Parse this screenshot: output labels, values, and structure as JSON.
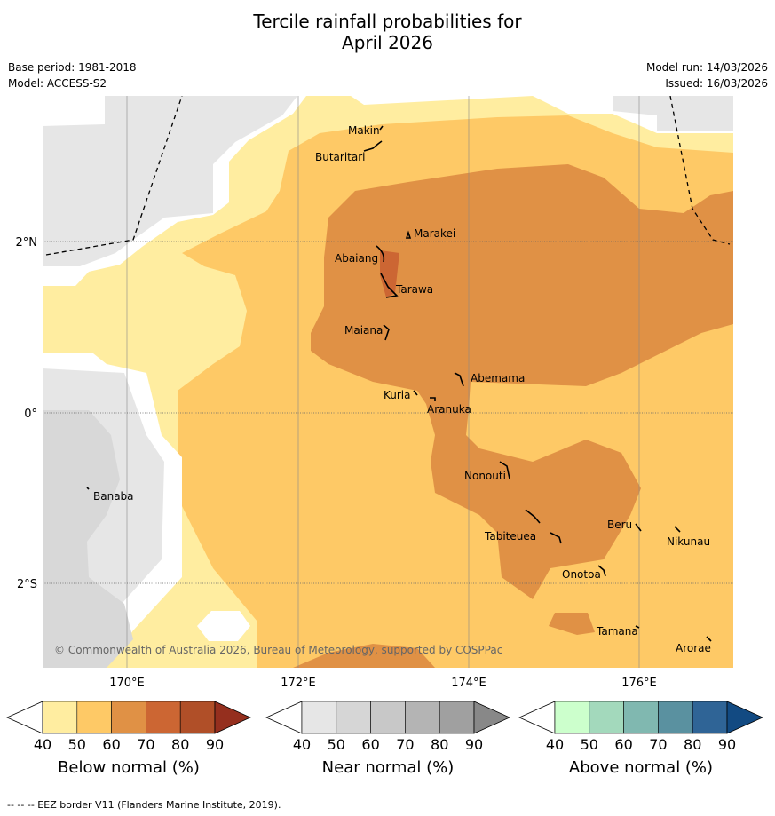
{
  "title": {
    "line1": "Tercile rainfall probabilities for",
    "line2": "April 2026"
  },
  "info": {
    "base_period": "Base period: 1981-2018",
    "model": "Model: ACCESS-S2",
    "model_run": "Model run: 14/03/2026",
    "issued": "Issued: 16/03/2026"
  },
  "axes": {
    "lat": [
      "2°N",
      "0°",
      "2°S"
    ],
    "lon": [
      "170°E",
      "172°E",
      "174°E",
      "176°E"
    ]
  },
  "islands": [
    "Makin",
    "Butaritari",
    "Marakei",
    "Abaiang",
    "Tarawa",
    "Maiana",
    "Abemama",
    "Kuria",
    "Aranuka",
    "Banaba",
    "Nonouti",
    "Tabiteuea",
    "Beru",
    "Nikunau",
    "Onotoa",
    "Tamana",
    "Arorae"
  ],
  "copyright": "© Commonwealth of Australia 2026, Bureau of Meteorology, supported by COSPPac",
  "colorbars": [
    {
      "label": "Below normal (%)",
      "colors": [
        "#ffeda0",
        "#fec966",
        "#e09145",
        "#cc6633",
        "#b04f28",
        "#952f1e"
      ]
    },
    {
      "label": "Near normal (%)",
      "colors": [
        "#e6e6e6",
        "#d6d6d6",
        "#c8c8c8",
        "#b4b4b4",
        "#a0a0a0",
        "#888888"
      ]
    },
    {
      "label": "Above normal (%)",
      "colors": [
        "#ccffcc",
        "#a3d9bc",
        "#80b8b0",
        "#5a91a0",
        "#2f6496",
        "#124a82"
      ]
    }
  ],
  "ticks": [
    "40",
    "50",
    "60",
    "70",
    "80",
    "90"
  ],
  "footer": "--  --  -- EEZ border V11 (Flanders Marine Institute, 2019)."
}
